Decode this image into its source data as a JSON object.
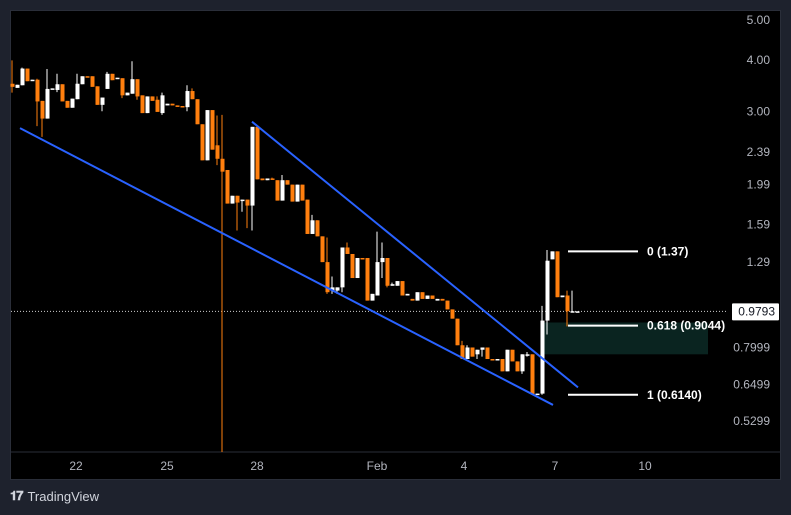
{
  "brand": {
    "name": "TradingView",
    "logo_text": "TV"
  },
  "colors": {
    "up": "#ffffff",
    "down": "#ff7f0e",
    "trendline": "#2962ff",
    "fib_line": "#ffffff",
    "zone": "#0a2420",
    "vline": "#ff7f0e"
  },
  "chart_data": {
    "type": "candlestick",
    "y_scale": "log",
    "ylim": [
      0.5,
      5.2
    ],
    "y_ticks": [
      "5.00",
      "4.00",
      "3.00",
      "2.39",
      "1.99",
      "1.59",
      "1.29",
      "0.7999",
      "0.6499",
      "0.5299"
    ],
    "x_ticks": [
      {
        "label": "22",
        "index": 12.8
      },
      {
        "label": "25",
        "index": 31
      },
      {
        "label": "28",
        "index": 49
      },
      {
        "label": "Feb",
        "index": 73
      },
      {
        "label": "4",
        "index": 90.4
      },
      {
        "label": "7",
        "index": 108.6
      },
      {
        "label": "10",
        "index": 126.6
      }
    ],
    "current_price": "0.9793",
    "candles_ochl": [
      [
        3.5,
        3.44,
        3.99,
        3.33
      ],
      [
        3.42,
        3.48
      ],
      [
        3.47,
        3.81,
        3.83,
        3.47
      ],
      [
        3.81,
        3.55
      ],
      [
        3.56,
        3.58
      ],
      [
        3.58,
        3.17,
        3.6,
        2.76
      ],
      [
        3.18,
        2.88,
        3.18,
        2.6
      ],
      [
        2.88,
        3.4,
        3.8,
        2.88
      ],
      [
        3.39,
        3.41
      ],
      [
        3.38,
        3.49,
        3.7,
        3.34
      ],
      [
        3.49,
        3.17
      ],
      [
        3.18,
        3.06
      ],
      [
        3.06,
        3.22
      ],
      [
        3.21,
        3.5,
        3.7,
        3.21
      ],
      [
        3.49,
        3.65
      ],
      [
        3.65,
        3.63
      ],
      [
        3.65,
        3.44
      ],
      [
        3.45,
        3.11
      ],
      [
        3.11,
        3.24,
        3.24,
        3.0
      ],
      [
        3.4,
        3.7,
        3.74,
        3.4
      ],
      [
        3.7,
        3.57
      ],
      [
        3.6,
        3.62
      ],
      [
        3.61,
        3.28,
        3.61,
        3.23
      ],
      [
        3.28,
        3.33
      ],
      [
        3.31,
        3.59,
        3.97,
        3.31
      ],
      [
        3.59,
        3.26,
        3.59,
        3.2
      ],
      [
        3.28,
        2.97
      ],
      [
        2.97,
        3.26
      ],
      [
        3.26,
        3.18
      ],
      [
        3.2,
        2.99,
        3.26,
        2.99
      ],
      [
        2.97,
        3.28,
        3.33,
        2.94
      ],
      [
        3.1,
        3.13
      ],
      [
        3.13,
        3.1
      ],
      [
        3.1,
        3.08
      ],
      [
        3.09,
        3.07
      ],
      [
        3.07,
        3.36,
        3.47,
        3.0
      ],
      [
        3.36,
        3.21,
        3.41,
        3.21
      ],
      [
        3.21,
        2.79
      ],
      [
        2.79,
        2.28
      ],
      [
        2.28,
        3.02
      ],
      [
        3.02,
        2.42
      ],
      [
        2.48,
        2.3,
        2.93,
        2.22
      ],
      [
        2.3,
        2.14
      ],
      [
        2.16,
        1.79
      ],
      [
        1.79,
        1.87
      ],
      [
        1.87,
        1.8,
        1.87,
        1.54
      ],
      [
        1.82,
        1.83,
        1.83,
        1.71
      ],
      [
        1.83,
        1.77,
        1.83,
        1.56
      ],
      [
        1.77,
        2.75,
        2.75,
        1.54
      ],
      [
        2.75,
        2.05
      ],
      [
        2.06,
        2.04
      ],
      [
        2.04,
        2.06
      ],
      [
        2.06,
        2.05,
        2.07,
        2.05
      ],
      [
        2.04,
        1.82
      ],
      [
        1.82,
        2.04,
        2.1,
        1.82
      ],
      [
        2.04,
        1.99
      ],
      [
        1.99,
        1.81
      ],
      [
        1.81,
        1.99
      ],
      [
        1.99,
        1.82
      ],
      [
        1.83,
        1.51
      ],
      [
        1.51,
        1.63,
        1.68,
        1.51
      ],
      [
        1.63,
        1.49
      ],
      [
        1.49,
        1.29
      ],
      [
        1.29,
        1.09,
        1.48,
        1.08
      ],
      [
        1.1,
        1.12,
        1.19,
        1.08
      ],
      [
        1.1,
        1.12,
        1.12,
        1.08
      ],
      [
        1.12,
        1.4,
        1.4,
        1.09
      ],
      [
        1.4,
        1.35,
        1.44,
        1.35
      ],
      [
        1.35,
        1.18
      ],
      [
        1.18,
        1.32
      ],
      [
        1.32,
        1.31
      ],
      [
        1.32,
        1.04
      ],
      [
        1.04,
        1.08
      ],
      [
        1.07,
        1.29,
        1.53,
        1.07
      ],
      [
        1.29,
        1.32,
        1.44,
        1.18
      ],
      [
        1.32,
        1.13,
        1.32,
        1.12
      ],
      [
        1.13,
        1.14,
        1.15,
        1.13
      ],
      [
        1.13,
        1.16
      ],
      [
        1.16,
        1.07
      ],
      [
        1.07,
        1.08
      ],
      [
        1.05,
        1.04
      ],
      [
        1.04,
        1.09
      ],
      [
        1.09,
        1.05
      ],
      [
        1.05,
        1.07
      ],
      [
        1.07,
        1.05
      ],
      [
        1.04,
        1.05
      ],
      [
        1.05,
        1.04
      ],
      [
        1.04,
        0.99
      ],
      [
        0.99,
        0.94
      ],
      [
        0.94,
        0.81
      ],
      [
        0.81,
        0.75,
        0.83,
        0.75
      ],
      [
        0.75,
        0.8,
        0.81,
        0.75
      ],
      [
        0.8,
        0.76
      ],
      [
        0.77,
        0.79,
        0.79,
        0.75
      ],
      [
        0.79,
        0.8,
        0.8,
        0.76
      ],
      [
        0.8,
        0.75
      ],
      [
        0.75,
        0.745
      ],
      [
        0.745,
        0.75
      ],
      [
        0.75,
        0.7
      ],
      [
        0.7,
        0.79
      ],
      [
        0.79,
        0.74
      ],
      [
        0.74,
        0.7
      ],
      [
        0.7,
        0.77,
        0.77,
        0.69
      ],
      [
        0.765,
        0.77,
        0.78,
        0.76
      ],
      [
        0.77,
        0.615
      ],
      [
        0.614,
        0.618
      ],
      [
        0.618,
        0.93,
        1.01,
        0.614
      ],
      [
        0.93,
        1.3,
        1.38,
        0.86
      ],
      [
        1.31,
        1.37
      ],
      [
        1.37,
        1.06
      ],
      [
        1.06,
        1.07
      ],
      [
        1.07,
        0.98,
        1.1,
        0.9
      ],
      [
        0.975,
        0.98,
        1.1,
        0.975
      ],
      [
        0.978,
        0.9793
      ]
    ],
    "trendlines": [
      {
        "name": "wedge-lower",
        "from": [
          1.6,
          2.73
        ],
        "to": [
          108.2,
          0.58
        ]
      },
      {
        "name": "wedge-upper",
        "from": [
          48,
          2.83
        ],
        "to": [
          113.2,
          0.64
        ]
      }
    ],
    "vertical_line": {
      "index": 42,
      "from_price": 2.94
    },
    "fibonacci": {
      "start_index": 111.2,
      "end_index": 125.2,
      "levels": [
        {
          "label": "0 (1.37)",
          "price": 1.37
        },
        {
          "label": "0.618 (0.9044)",
          "price": 0.9044
        },
        {
          "label": "1 (0.6140)",
          "price": 0.614
        }
      ]
    },
    "zone": {
      "start_index": 105.8,
      "end_index": 139.2,
      "top": 0.92,
      "bottom": 0.77
    }
  }
}
